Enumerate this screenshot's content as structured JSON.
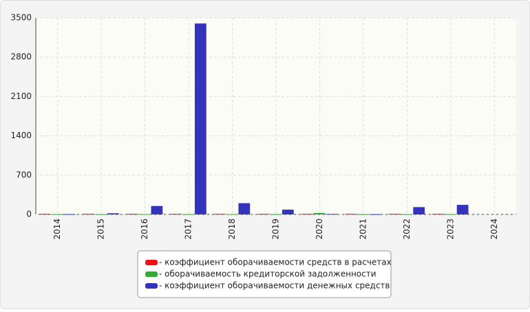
{
  "chart_data": {
    "type": "bar",
    "categories": [
      "2014",
      "2015",
      "2016",
      "2017",
      "2018",
      "2019",
      "2020",
      "2021",
      "2022",
      "2023",
      "2024"
    ],
    "series": [
      {
        "name": "- коэффициент оборачиваемости средств в расчетах",
        "color": "#ee1111",
        "values": [
          10,
          10,
          10,
          10,
          10,
          10,
          10,
          10,
          10,
          10,
          null
        ]
      },
      {
        "name": "- оборачиваемость кредиторской задолженности",
        "color": "#33aa33",
        "values": [
          5,
          5,
          5,
          5,
          5,
          5,
          25,
          5,
          5,
          5,
          null
        ]
      },
      {
        "name": "- коэффициент оборачиваемости денежных средств",
        "color": "#3333bb",
        "values": [
          5,
          20,
          150,
          3400,
          200,
          85,
          8,
          5,
          130,
          170,
          null
        ]
      }
    ],
    "ylim": [
      0,
      3500
    ],
    "yticks": [
      0,
      700,
      1400,
      2100,
      2800,
      3500
    ],
    "grid": true,
    "legend": "bottom"
  }
}
